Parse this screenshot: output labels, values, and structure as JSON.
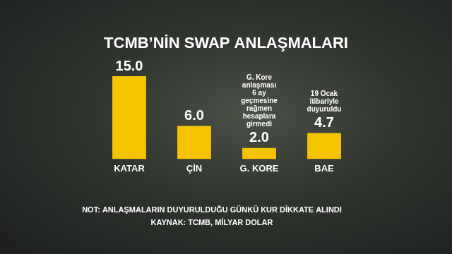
{
  "chart_data": {
    "type": "bar",
    "title": "TCMB’NİN SWAP ANLAŞMALARI",
    "categories": [
      "KATAR",
      "ÇİN",
      "G. KORE",
      "BAE"
    ],
    "values": [
      15.0,
      6.0,
      2.0,
      4.7
    ],
    "value_labels": [
      "15.0",
      "6.0",
      "2.0",
      "4.7"
    ],
    "color": "#f5c400",
    "ylim": [
      0,
      15
    ],
    "grid": false,
    "data_labels": true,
    "tick_labels": "x",
    "annotations": [
      {
        "category": "G. KORE",
        "text": [
          "G. Kore",
          "anlaşması",
          "6 ay",
          "geçmesine",
          "rağmen",
          "hesaplara",
          "girmedi"
        ]
      },
      {
        "category": "BAE",
        "text": [
          "19 Ocak",
          "itibariyle",
          "duyuruldu"
        ]
      }
    ],
    "notes": [
      "NOT: ANLAŞMALARIN DUYURULDUĞU GÜNKÜ KUR DİKKATE ALINDI",
      "KAYNAK: TCMB, MİLYAR DOLAR"
    ]
  }
}
